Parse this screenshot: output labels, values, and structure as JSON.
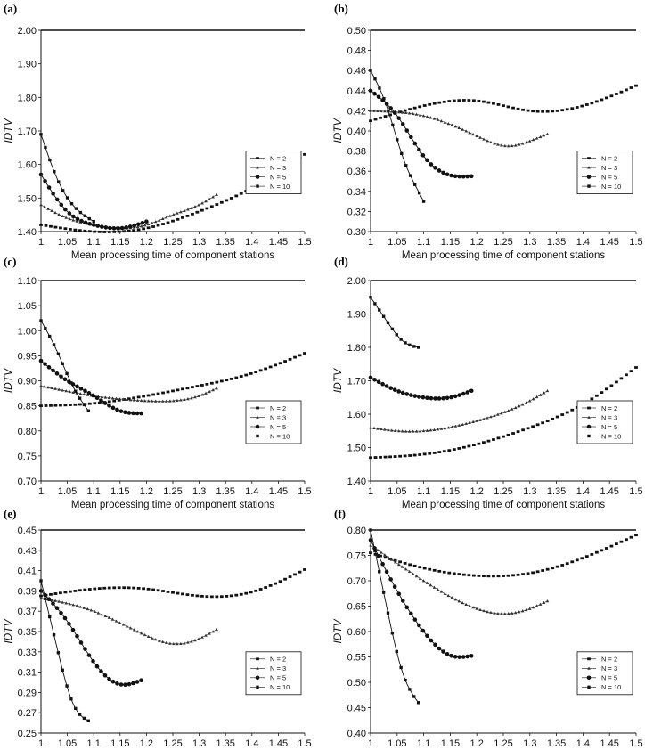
{
  "figure": {
    "legend_prefix": "N",
    "legend_labels": [
      "N = 2",
      "N = 3",
      "N = 5",
      "N = 10"
    ]
  },
  "chart_data": [
    {
      "panel": "(a)",
      "type": "line",
      "xlabel": "Mean processing time of component stations",
      "ylabel": "IDTV",
      "xlim": [
        1,
        1.5
      ],
      "ylim": [
        1.4,
        2.0
      ],
      "xticks": [
        "1",
        "1.05",
        "1.1",
        "1.15",
        "1.2",
        "1.25",
        "1.3",
        "1.35",
        "1.4",
        "1.45",
        "1.5"
      ],
      "yticks": [
        "1.40",
        "1.50",
        "1.60",
        "1.70",
        "1.80",
        "1.90",
        "2.00"
      ],
      "legend_position": "right",
      "series": [
        {
          "name": "N = 2",
          "marker": "square-small",
          "x": [
            1,
            1.1,
            1.2,
            1.3,
            1.4,
            1.5
          ],
          "y": [
            1.42,
            1.4,
            1.41,
            1.46,
            1.53,
            1.63
          ]
        },
        {
          "name": "N = 3",
          "marker": "triangle",
          "x": [
            1,
            1.05,
            1.1,
            1.15,
            1.2,
            1.25,
            1.3,
            1.333
          ],
          "y": [
            1.48,
            1.44,
            1.42,
            1.41,
            1.42,
            1.45,
            1.48,
            1.51
          ]
        },
        {
          "name": "N = 5",
          "marker": "circle",
          "x": [
            1,
            1.05,
            1.1,
            1.15,
            1.2
          ],
          "y": [
            1.57,
            1.46,
            1.42,
            1.41,
            1.43
          ]
        },
        {
          "name": "N = 10",
          "marker": "square",
          "x": [
            1,
            1.03,
            1.06,
            1.09,
            1.1
          ],
          "y": [
            1.69,
            1.56,
            1.48,
            1.44,
            1.43
          ]
        }
      ]
    },
    {
      "panel": "(b)",
      "type": "line",
      "xlabel": "Mean processing time of component stations",
      "ylabel": "IDTV",
      "xlim": [
        1,
        1.5
      ],
      "ylim": [
        0.3,
        0.5
      ],
      "xticks": [
        "1",
        "1.05",
        "1.1",
        "1.15",
        "1.2",
        "1.25",
        "1.3",
        "1.35",
        "1.4",
        "1.45",
        "1.5"
      ],
      "yticks": [
        "0.30",
        "0.32",
        "0.34",
        "0.36",
        "0.38",
        "0.40",
        "0.42",
        "0.44",
        "0.46",
        "0.48",
        "0.50"
      ],
      "legend_position": "right",
      "series": [
        {
          "name": "N = 2",
          "marker": "square-small",
          "x": [
            1,
            1.1,
            1.2,
            1.3,
            1.4,
            1.5
          ],
          "y": [
            0.41,
            0.425,
            0.43,
            0.42,
            0.425,
            0.445
          ]
        },
        {
          "name": "N = 3",
          "marker": "triangle",
          "x": [
            1,
            1.1,
            1.2,
            1.26,
            1.3,
            1.333
          ],
          "y": [
            0.42,
            0.415,
            0.395,
            0.385,
            0.39,
            0.397
          ]
        },
        {
          "name": "N = 5",
          "marker": "circle",
          "x": [
            1,
            1.05,
            1.1,
            1.15,
            1.19
          ],
          "y": [
            0.44,
            0.415,
            0.375,
            0.356,
            0.355
          ]
        },
        {
          "name": "N = 10",
          "marker": "square",
          "x": [
            1,
            1.03,
            1.06,
            1.09,
            1.1
          ],
          "y": [
            0.46,
            0.425,
            0.375,
            0.34,
            0.33
          ]
        }
      ]
    },
    {
      "panel": "(c)",
      "type": "line",
      "xlabel": "Mean processing time of component stations",
      "ylabel": "IDTV",
      "xlim": [
        1,
        1.5
      ],
      "ylim": [
        0.7,
        1.1
      ],
      "xticks": [
        "1",
        "1.05",
        "1.1",
        "1.15",
        "1.2",
        "1.25",
        "1.3",
        "1.35",
        "1.4",
        "1.45",
        "1.5"
      ],
      "yticks": [
        "0.70",
        "0.75",
        "0.80",
        "0.85",
        "0.90",
        "0.95",
        "1.00",
        "1.05",
        "1.10"
      ],
      "legend_position": "right",
      "series": [
        {
          "name": "N = 2",
          "marker": "square-small",
          "x": [
            1,
            1.1,
            1.2,
            1.3,
            1.4,
            1.5
          ],
          "y": [
            0.85,
            0.855,
            0.87,
            0.89,
            0.915,
            0.955
          ]
        },
        {
          "name": "N = 3",
          "marker": "triangle",
          "x": [
            1,
            1.1,
            1.2,
            1.25,
            1.3,
            1.333
          ],
          "y": [
            0.89,
            0.87,
            0.86,
            0.86,
            0.87,
            0.885
          ]
        },
        {
          "name": "N = 5",
          "marker": "circle",
          "x": [
            1,
            1.05,
            1.1,
            1.15,
            1.19
          ],
          "y": [
            0.94,
            0.9,
            0.87,
            0.84,
            0.835
          ]
        },
        {
          "name": "N = 10",
          "marker": "square",
          "x": [
            1,
            1.03,
            1.06,
            1.09
          ],
          "y": [
            1.02,
            0.96,
            0.89,
            0.84
          ]
        }
      ]
    },
    {
      "panel": "(d)",
      "type": "line",
      "xlabel": "Mean processing time of component stations",
      "ylabel": "IDTV",
      "xlim": [
        1,
        1.5
      ],
      "ylim": [
        1.4,
        2.0
      ],
      "xticks": [
        "1",
        "1.05",
        "1.1",
        "1.15",
        "1.2",
        "1.25",
        "1.3",
        "1.35",
        "1.4",
        "1.45",
        "1.5"
      ],
      "yticks": [
        "1.40",
        "1.50",
        "1.60",
        "1.70",
        "1.80",
        "1.90",
        "2.00"
      ],
      "legend_position": "right",
      "series": [
        {
          "name": "N = 2",
          "marker": "square-small",
          "x": [
            1,
            1.1,
            1.2,
            1.3,
            1.4,
            1.5
          ],
          "y": [
            1.47,
            1.48,
            1.51,
            1.56,
            1.63,
            1.74
          ]
        },
        {
          "name": "N = 3",
          "marker": "triangle",
          "x": [
            1,
            1.05,
            1.1,
            1.2,
            1.3,
            1.333
          ],
          "y": [
            1.56,
            1.55,
            1.55,
            1.58,
            1.64,
            1.67
          ]
        },
        {
          "name": "N = 5",
          "marker": "circle",
          "x": [
            1,
            1.05,
            1.1,
            1.15,
            1.19
          ],
          "y": [
            1.71,
            1.67,
            1.65,
            1.65,
            1.67
          ]
        },
        {
          "name": "N = 10",
          "marker": "square",
          "x": [
            1,
            1.03,
            1.06,
            1.09
          ],
          "y": [
            1.95,
            1.88,
            1.82,
            1.8
          ]
        }
      ]
    },
    {
      "panel": "(e)",
      "type": "line",
      "xlabel": "Mean processing time of component stations",
      "ylabel": "IDTV",
      "xlim": [
        1,
        1.5
      ],
      "ylim": [
        0.25,
        0.45
      ],
      "xticks": [
        "1",
        "1.05",
        "1.1",
        "1.15",
        "1.2",
        "1.25",
        "1.3",
        "1.35",
        "1.4",
        "1.45",
        "1.5"
      ],
      "yticks": [
        "0.25",
        "0.27",
        "0.29",
        "0.31",
        "0.33",
        "0.35",
        "0.37",
        "0.39",
        "0.41",
        "0.43",
        "0.45"
      ],
      "legend_position": "right",
      "series": [
        {
          "name": "N = 2",
          "marker": "square-small",
          "x": [
            1,
            1.1,
            1.2,
            1.3,
            1.4,
            1.5
          ],
          "y": [
            0.385,
            0.392,
            0.392,
            0.385,
            0.389,
            0.411
          ]
        },
        {
          "name": "N = 3",
          "marker": "triangle",
          "x": [
            1,
            1.1,
            1.2,
            1.25,
            1.3,
            1.333
          ],
          "y": [
            0.383,
            0.37,
            0.346,
            0.338,
            0.343,
            0.352
          ]
        },
        {
          "name": "N = 5",
          "marker": "circle",
          "x": [
            1,
            1.05,
            1.1,
            1.15,
            1.19
          ],
          "y": [
            0.39,
            0.36,
            0.32,
            0.298,
            0.302
          ]
        },
        {
          "name": "N = 10",
          "marker": "square",
          "x": [
            1,
            1.03,
            1.06,
            1.09
          ],
          "y": [
            0.4,
            0.335,
            0.28,
            0.262
          ]
        }
      ]
    },
    {
      "panel": "(f)",
      "type": "line",
      "xlabel": "Mean processing time of component stations",
      "ylabel": "IDTV",
      "xlim": [
        1,
        1.5
      ],
      "ylim": [
        0.4,
        0.8
      ],
      "xticks": [
        "1",
        "1.05",
        "1.1",
        "1.15",
        "1.2",
        "1.25",
        "1.3",
        "1.35",
        "1.4",
        "1.45",
        "1.5"
      ],
      "yticks": [
        "0.40",
        "0.45",
        "0.50",
        "0.55",
        "0.60",
        "0.65",
        "0.70",
        "0.75",
        "0.80"
      ],
      "legend_position": "right",
      "series": [
        {
          "name": "N = 2",
          "marker": "square-small",
          "x": [
            1,
            1.1,
            1.2,
            1.3,
            1.4,
            1.5
          ],
          "y": [
            0.755,
            0.725,
            0.71,
            0.715,
            0.745,
            0.79
          ]
        },
        {
          "name": "N = 3",
          "marker": "triangle",
          "x": [
            1,
            1.1,
            1.2,
            1.25,
            1.3,
            1.333
          ],
          "y": [
            0.77,
            0.7,
            0.645,
            0.635,
            0.645,
            0.66
          ]
        },
        {
          "name": "N = 5",
          "marker": "circle",
          "x": [
            1,
            1.05,
            1.1,
            1.15,
            1.19
          ],
          "y": [
            0.78,
            0.68,
            0.6,
            0.553,
            0.552
          ]
        },
        {
          "name": "N = 10",
          "marker": "square",
          "x": [
            1,
            1.03,
            1.06,
            1.09
          ],
          "y": [
            0.8,
            0.65,
            0.52,
            0.46
          ]
        }
      ]
    }
  ]
}
